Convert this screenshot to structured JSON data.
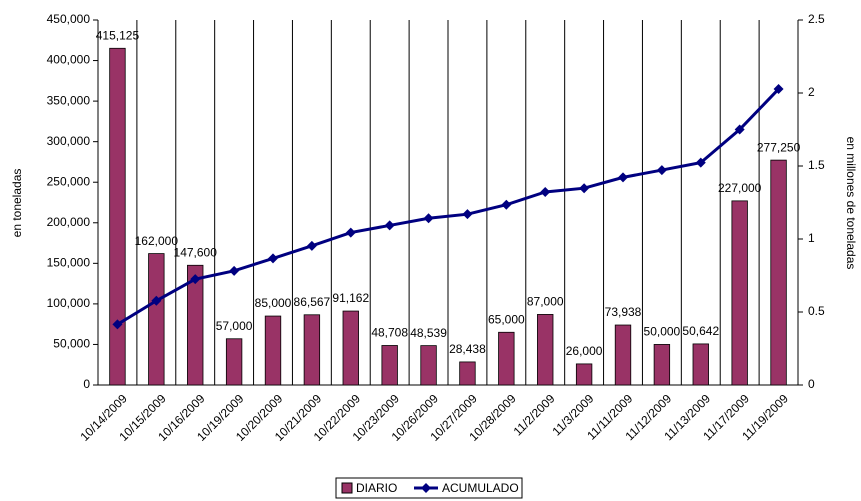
{
  "chart_data": {
    "type": "bar-line",
    "categories": [
      "10/14/2009",
      "10/15/2009",
      "10/16/2009",
      "10/19/2009",
      "10/20/2009",
      "10/21/2009",
      "10/22/2009",
      "10/23/2009",
      "10/26/2009",
      "10/27/2009",
      "10/28/2009",
      "11/2/2009",
      "11/3/2009",
      "11/11/2009",
      "11/12/2009",
      "11/13/2009",
      "11/17/2009",
      "11/19/2009"
    ],
    "series": [
      {
        "name": "DIARIO",
        "type": "bar",
        "color": "#993366",
        "values": [
          415125,
          162000,
          147600,
          57000,
          85000,
          86567,
          91162,
          48708,
          48539,
          28438,
          65000,
          87000,
          26000,
          73938,
          50000,
          50642,
          227000,
          277250
        ],
        "value_labels": [
          "415,125",
          "162,000",
          "147,600",
          "57,000",
          "85,000",
          "86,567",
          "91,162",
          "48,708",
          "48,539",
          "28,438",
          "65,000",
          "87,000",
          "26,000",
          "73,938",
          "50,000",
          "50,642",
          "227,000",
          "277,250"
        ]
      },
      {
        "name": "ACUMULADO",
        "type": "line",
        "axis": "y2",
        "color": "#000080",
        "values": [
          0.415,
          0.577,
          0.725,
          0.782,
          0.867,
          0.953,
          1.044,
          1.093,
          1.142,
          1.17,
          1.235,
          1.322,
          1.348,
          1.422,
          1.472,
          1.523,
          1.75,
          2.027
        ]
      }
    ],
    "y_label": "en toneladas",
    "y2_label": "en millones de toneladas",
    "ylim": [
      0,
      450000
    ],
    "yticks": [
      0,
      {
        "value": 50000,
        "label": "50,000"
      },
      {
        "value": 100000,
        "label": "100,000"
      },
      {
        "value": 150000,
        "label": "150,000"
      },
      {
        "value": 200000,
        "label": "200,000"
      },
      {
        "value": 250000,
        "label": "250,000"
      },
      {
        "value": 300000,
        "label": "300,000"
      },
      {
        "value": 350000,
        "label": "350,000"
      },
      {
        "value": 400000,
        "label": "400,000"
      },
      {
        "value": 450000,
        "label": "450,000"
      }
    ],
    "y2lim": [
      0,
      2.5
    ],
    "y2ticks": [
      0,
      0.5,
      1,
      1.5,
      2,
      2.5
    ],
    "grid": true,
    "legend": "bottom"
  }
}
